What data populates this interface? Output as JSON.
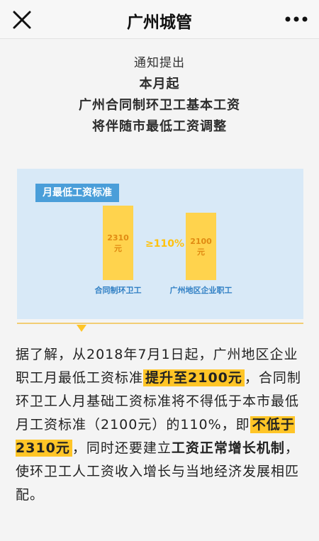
{
  "nav": {
    "title": "广州城管",
    "close_icon": "close-icon",
    "more_icon": "more-dots-icon"
  },
  "headline": {
    "line1": "通知提出",
    "line2": "本月起",
    "line3": "广州合同制环卫工基本工资",
    "line4": "将伴随市最低工资调整"
  },
  "colors": {
    "accent_blue": "#4a9ed9",
    "bar_yellow": "#ffd34d",
    "highlight": "#ffc527"
  },
  "chart_data": {
    "type": "bar",
    "title": "月最低工资标准",
    "categories": [
      "合同制环卫工",
      "广州地区企业职工"
    ],
    "values": [
      2310,
      2100
    ],
    "value_labels": [
      "2310\n元",
      "2100\n元"
    ],
    "annotation": "≥110%"
  },
  "body": {
    "seg1": "据了解，从2018年7月1日起，广州地区企业职工月最低工资标准",
    "seg2": "提升至2100元",
    "seg3": "，合同制环卫工人月基础工资标准将不得低于本市最低月工资标准（2100元）的110%，即",
    "seg4": "不低于2310元",
    "seg5": "，同时还要建立",
    "seg6": "工资正常增长机制",
    "seg7": "，使环卫工人工资收入增长与当地经济发展相匹配。"
  }
}
